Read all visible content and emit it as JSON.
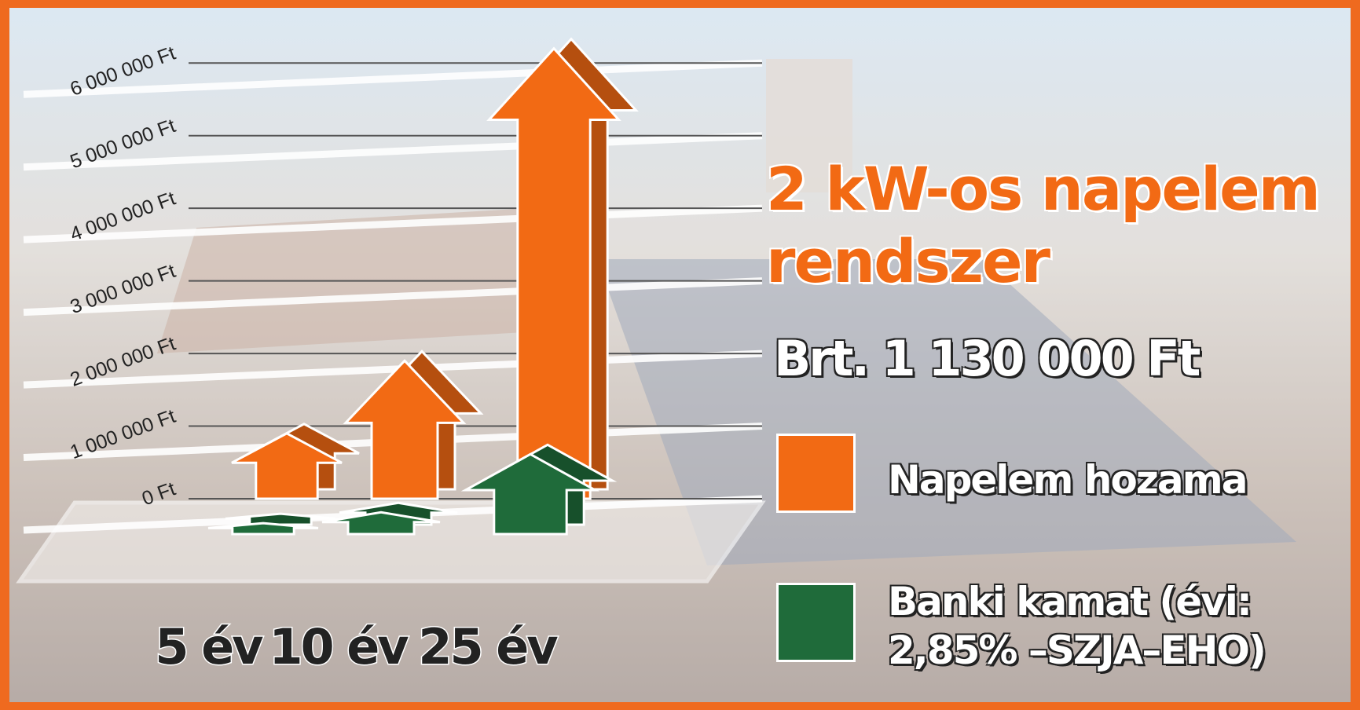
{
  "chart_data": {
    "type": "bar",
    "title": "2 kW-os napelem rendszer",
    "subtitle": "Brt. 1 130 000 Ft",
    "categories": [
      "5 év",
      "10 év",
      "25 év"
    ],
    "series": [
      {
        "name": "Napelem hozama",
        "color": "#f26a14",
        "values": [
          900000,
          1900000,
          6200000
        ]
      },
      {
        "name": "Banki kamat (évi: 2,85% –SZJA–EHO)",
        "color": "#1f6b3a",
        "values": [
          150000,
          300000,
          1100000
        ]
      }
    ],
    "ylim": [
      0,
      6500000
    ],
    "yticks": [
      {
        "value": 0,
        "label": "0 Ft"
      },
      {
        "value": 1000000,
        "label": "1 000 000 Ft"
      },
      {
        "value": 2000000,
        "label": "2 000 000 Ft"
      },
      {
        "value": 3000000,
        "label": "3 000 000 Ft"
      },
      {
        "value": 4000000,
        "label": "4 000 000 Ft"
      },
      {
        "value": 5000000,
        "label": "5 000 000 Ft"
      },
      {
        "value": 6000000,
        "label": "6 000 000 Ft"
      }
    ],
    "grid": true
  }
}
